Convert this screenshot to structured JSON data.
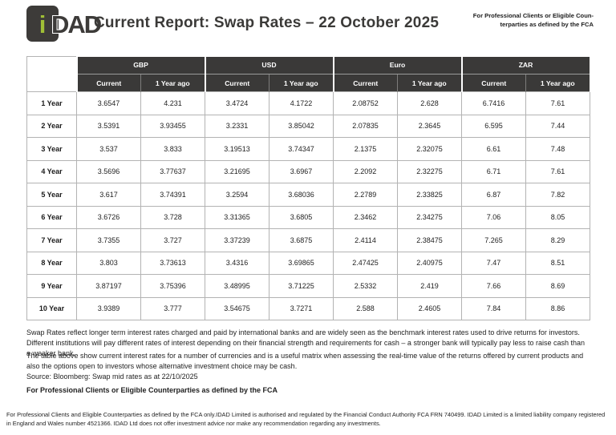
{
  "header": {
    "logo_i": "i",
    "logo_name": "DAD",
    "title": "Current Report: Swap Rates – 22 October 2025",
    "note_line1": "For Professional Clients or Eligible Coun-",
    "note_line2": "terparties as defined by the FCA"
  },
  "colors": {
    "charcoal": "#3a3938",
    "logo_green": "#a0bf36",
    "table_border": "#b3b3b3"
  },
  "table": {
    "groups": [
      "GBP",
      "USD",
      "Euro",
      "ZAR"
    ],
    "subheaders": [
      "Current",
      "1 Year ago"
    ],
    "rows": [
      {
        "label": "1 Year",
        "values": [
          "3.6547",
          "4.231",
          "3.4724",
          "4.1722",
          "2.08752",
          "2.628",
          "6.7416",
          "7.61"
        ]
      },
      {
        "label": "2 Year",
        "values": [
          "3.5391",
          "3.93455",
          "3.2331",
          "3.85042",
          "2.07835",
          "2.3645",
          "6.595",
          "7.44"
        ]
      },
      {
        "label": "3 Year",
        "values": [
          "3.537",
          "3.833",
          "3.19513",
          "3.74347",
          "2.1375",
          "2.32075",
          "6.61",
          "7.48"
        ]
      },
      {
        "label": "4 Year",
        "values": [
          "3.5696",
          "3.77637",
          "3.21695",
          "3.6967",
          "2.2092",
          "2.32275",
          "6.71",
          "7.61"
        ]
      },
      {
        "label": "5 Year",
        "values": [
          "3.617",
          "3.74391",
          "3.2594",
          "3.68036",
          "2.2789",
          "2.33825",
          "6.87",
          "7.82"
        ]
      },
      {
        "label": "6 Year",
        "values": [
          "3.6726",
          "3.728",
          "3.31365",
          "3.6805",
          "2.3462",
          "2.34275",
          "7.06",
          "8.05"
        ]
      },
      {
        "label": "7 Year",
        "values": [
          "3.7355",
          "3.727",
          "3.37239",
          "3.6875",
          "2.4114",
          "2.38475",
          "7.265",
          "8.29"
        ]
      },
      {
        "label": "8 Year",
        "values": [
          "3.803",
          "3.73613",
          "3.4316",
          "3.69865",
          "2.47425",
          "2.40975",
          "7.47",
          "8.51"
        ]
      },
      {
        "label": "9 Year",
        "values": [
          "3.87197",
          "3.75396",
          "3.48995",
          "3.71225",
          "2.5332",
          "2.419",
          "7.66",
          "8.69"
        ]
      },
      {
        "label": "10 Year",
        "values": [
          "3.9389",
          "3.777",
          "3.54675",
          "3.7271",
          "2.588",
          "2.4605",
          "7.84",
          "8.86"
        ]
      }
    ]
  },
  "footer": {
    "para1": "Swap Rates reflect longer term interest rates charged and paid by international banks and are widely seen as the benchmark interest rates used to drive returns for investors. Different institutions will pay different rates of interest depending on their financial strength and requirements for cash – a stronger bank will typically pay less to raise cash than a weaker bank.",
    "para2": "The table above show current interest rates for a number of currencies and is a useful matrix when assessing the real-time value of the returns offered by current products and also the options open to investors whose alternative investment choice may be cash.",
    "source": "Source: Bloomberg: Swap mid rates as at 22/10/2025",
    "bold_note": "For Professional Clients or Eligible Counterparties as defined by the FCA",
    "disclaimer": "For Professional Clients and Eligible Counterparties as defined by the FCA only.IDAD Limited is authorised and regulated by the Financial Conduct Authority FCA FRN 740499. IDAD Limited is a limited liability company registered in England and Wales number 4521366. IDAD Ltd does not offer investment advice nor make any recommendation regarding any investments."
  }
}
